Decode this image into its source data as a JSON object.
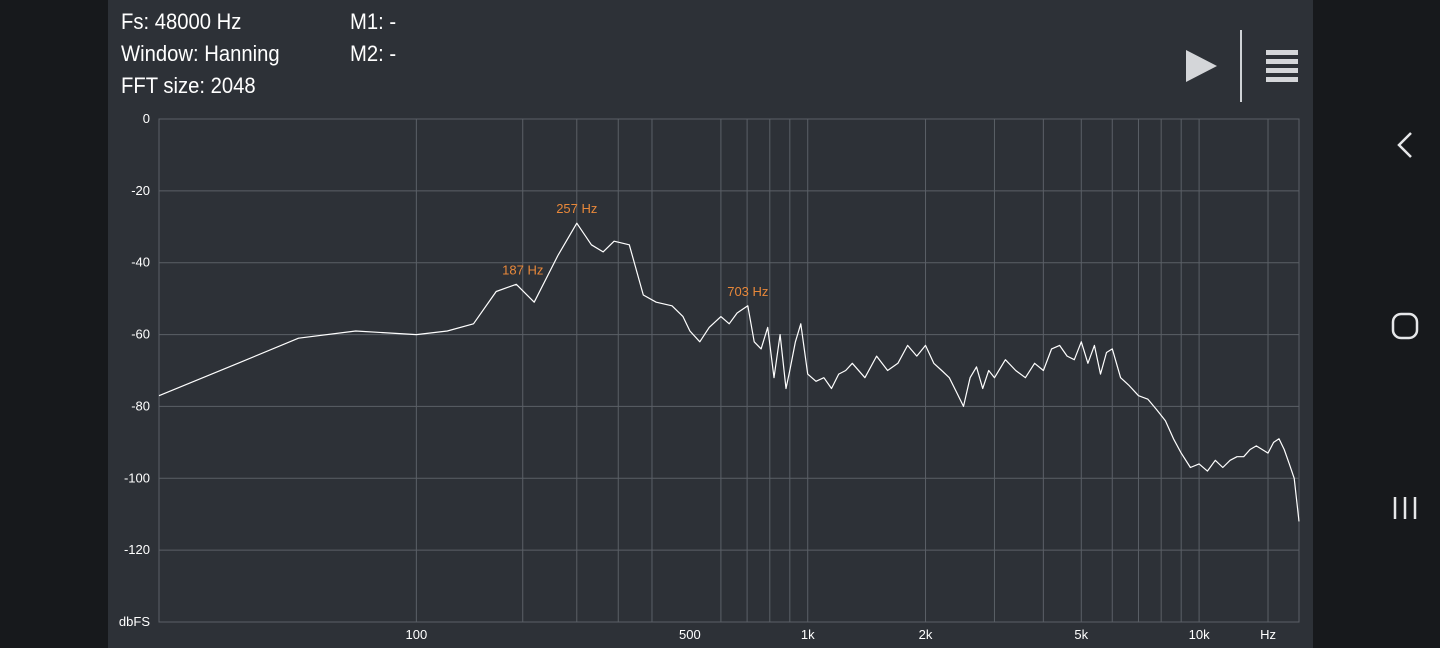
{
  "info": {
    "fs": "Fs: 48000 Hz",
    "window": "Window: Hanning",
    "fft": "FFT size: 2048",
    "m1": "M1: -",
    "m2": "M2: -"
  },
  "toolbar": {
    "play": "play-icon",
    "menu": "menu-icon"
  },
  "nav": {
    "back": "chevron-left-icon",
    "home": "home-icon",
    "recents": "recents-icon"
  },
  "colors": {
    "background": "#2d3137",
    "grid": "#5b6067",
    "trace": "#ffffff",
    "peak_label": "#e8883a",
    "text": "#ffffff"
  },
  "chart_data": {
    "type": "line",
    "xscale": "log",
    "xlim": [
      22,
      18000
    ],
    "ylim": [
      -140,
      0
    ],
    "ylabel": "dbFS",
    "xlabel": "Hz",
    "grid": true,
    "y_ticks": [
      {
        "value": 0,
        "label": "0"
      },
      {
        "value": -20,
        "label": "-20"
      },
      {
        "value": -40,
        "label": "-40"
      },
      {
        "value": -60,
        "label": "-60"
      },
      {
        "value": -80,
        "label": "-80"
      },
      {
        "value": -100,
        "label": "-100"
      },
      {
        "value": -120,
        "label": "-120"
      }
    ],
    "x_tick_labels": [
      {
        "value": 100,
        "label": "100"
      },
      {
        "value": 500,
        "label": "500"
      },
      {
        "value": 1000,
        "label": "1k"
      },
      {
        "value": 2000,
        "label": "2k"
      },
      {
        "value": 5000,
        "label": "5k"
      },
      {
        "value": 10000,
        "label": "10k"
      },
      {
        "value": 15000,
        "label": "Hz"
      }
    ],
    "x_gridlines": [
      100,
      187,
      257,
      328,
      400,
      600,
      700,
      800,
      900,
      1000,
      2000,
      3000,
      4000,
      5000,
      6000,
      7000,
      8000,
      9000,
      10000,
      15000
    ],
    "peaks": [
      {
        "x": 187,
        "y": -46,
        "label": "187 Hz"
      },
      {
        "x": 257,
        "y": -29,
        "label": "257 Hz"
      },
      {
        "x": 703,
        "y": -52,
        "label": "703 Hz"
      }
    ],
    "series": [
      {
        "x": [
          22,
          35,
          50,
          70,
          100,
          120,
          140,
          160,
          180,
          200,
          230,
          257,
          280,
          300,
          320,
          350,
          380,
          410,
          450,
          480,
          500,
          530,
          560,
          600,
          630,
          660,
          703,
          730,
          760,
          790,
          820,
          850,
          880,
          900,
          930,
          960,
          1000,
          1050,
          1100,
          1150,
          1200,
          1250,
          1300,
          1400,
          1500,
          1600,
          1700,
          1800,
          1900,
          2000,
          2100,
          2200,
          2300,
          2400,
          2500,
          2600,
          2700,
          2800,
          2900,
          3000,
          3200,
          3400,
          3600,
          3800,
          4000,
          4200,
          4400,
          4600,
          4800,
          5000,
          5200,
          5400,
          5600,
          5800,
          6000,
          6300,
          6600,
          7000,
          7400,
          7800,
          8200,
          8600,
          9000,
          9500,
          10000,
          10500,
          11000,
          11500,
          12000,
          12500,
          13000,
          13500,
          14000,
          14500,
          15000,
          15500,
          16000,
          16500,
          17000,
          17500,
          18000
        ],
        "y": [
          -77,
          -68,
          -61,
          -59,
          -60,
          -59,
          -57,
          -48,
          -46,
          -51,
          -38,
          -29,
          -35,
          -37,
          -34,
          -35,
          -49,
          -51,
          -52,
          -55,
          -59,
          -62,
          -58,
          -55,
          -57,
          -54,
          -52,
          -62,
          -64,
          -58,
          -72,
          -60,
          -75,
          -70,
          -62,
          -57,
          -71,
          -73,
          -72,
          -75,
          -71,
          -70,
          -68,
          -72,
          -66,
          -70,
          -68,
          -63,
          -66,
          -63,
          -68,
          -70,
          -72,
          -76,
          -80,
          -72,
          -69,
          -75,
          -70,
          -72,
          -67,
          -70,
          -72,
          -68,
          -70,
          -64,
          -63,
          -66,
          -67,
          -62,
          -68,
          -63,
          -71,
          -65,
          -64,
          -72,
          -74,
          -77,
          -78,
          -81,
          -84,
          -89,
          -93,
          -97,
          -96,
          -98,
          -95,
          -97,
          -95,
          -94,
          -94,
          -92,
          -91,
          -92,
          -93,
          -90,
          -89,
          -92,
          -96,
          -100,
          -112
        ]
      }
    ]
  }
}
